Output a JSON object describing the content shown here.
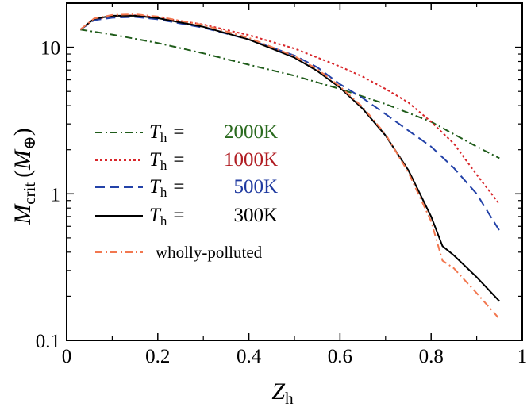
{
  "chart_data": {
    "type": "line",
    "xlabel": "Z",
    "xlabel_sub": "h",
    "ylabel": "M",
    "ylabel_sub": "crit",
    "ylabel_unit_open": "(",
    "ylabel_unit": "M",
    "ylabel_unit_sub": "⊕",
    "ylabel_unit_close": ")",
    "xlim": [
      0,
      1
    ],
    "ylim": [
      0.1,
      20
    ],
    "yscale": "log",
    "grid": false,
    "legend_placement": "center-left",
    "x_ticks": [
      {
        "value": 0,
        "label": "0"
      },
      {
        "value": 0.2,
        "label": "0.2"
      },
      {
        "value": 0.4,
        "label": "0.4"
      },
      {
        "value": 0.6,
        "label": "0.6"
      },
      {
        "value": 0.8,
        "label": "0.8"
      },
      {
        "value": 1,
        "label": "1"
      }
    ],
    "y_ticks": [
      {
        "value": 0.1,
        "label": "0.1"
      },
      {
        "value": 1,
        "label": "1"
      },
      {
        "value": 10,
        "label": "10"
      }
    ],
    "legend_symbol": "T",
    "legend_symbol_sub": "h",
    "legend_eq": "=",
    "series": [
      {
        "name": "2000K",
        "color": "#1f5c1a",
        "dash": "dashdot",
        "x": [
          0.03,
          0.1,
          0.2,
          0.3,
          0.4,
          0.5,
          0.6,
          0.7,
          0.8,
          0.9,
          0.95
        ],
        "y": [
          13.2,
          12.2,
          10.7,
          9.1,
          7.6,
          6.4,
          5.2,
          4.1,
          3.1,
          2.1,
          1.75
        ]
      },
      {
        "name": "1000K",
        "color": "#d8262a",
        "dash": "dotted",
        "x": [
          0.03,
          0.06,
          0.1,
          0.15,
          0.2,
          0.3,
          0.4,
          0.5,
          0.6,
          0.65,
          0.7,
          0.75,
          0.8,
          0.85,
          0.9,
          0.95
        ],
        "y": [
          13.2,
          15.5,
          16.3,
          16.5,
          16.0,
          14.3,
          12.1,
          9.8,
          7.4,
          6.3,
          5.2,
          4.2,
          3.1,
          2.2,
          1.35,
          0.85
        ]
      },
      {
        "name": "500K",
        "color": "#2342a8",
        "dash": "dashed",
        "x": [
          0.03,
          0.06,
          0.1,
          0.15,
          0.2,
          0.3,
          0.4,
          0.5,
          0.55,
          0.6,
          0.65,
          0.7,
          0.75,
          0.8,
          0.85,
          0.9,
          0.95
        ],
        "y": [
          13.2,
          15.3,
          15.9,
          16.1,
          15.5,
          13.6,
          11.3,
          8.8,
          7.3,
          5.6,
          4.5,
          3.5,
          2.7,
          2.1,
          1.5,
          1.0,
          0.56
        ]
      },
      {
        "name": "300K",
        "color": "#000000",
        "dash": "solid",
        "x": [
          0.03,
          0.06,
          0.1,
          0.15,
          0.2,
          0.3,
          0.4,
          0.5,
          0.55,
          0.6,
          0.65,
          0.7,
          0.75,
          0.8,
          0.825,
          0.85,
          0.9,
          0.95
        ],
        "y": [
          13.2,
          15.6,
          16.4,
          16.4,
          15.8,
          13.8,
          11.3,
          8.5,
          6.9,
          5.3,
          3.8,
          2.5,
          1.45,
          0.7,
          0.44,
          0.38,
          0.27,
          0.185
        ]
      },
      {
        "name": "wholly-polluted",
        "color": "#f2774f",
        "dash": "dashdot",
        "x": [
          0.03,
          0.06,
          0.1,
          0.15,
          0.2,
          0.3,
          0.4,
          0.5,
          0.55,
          0.6,
          0.65,
          0.7,
          0.75,
          0.8,
          0.825,
          0.85,
          0.9,
          0.95
        ],
        "y": [
          13.2,
          15.7,
          16.6,
          16.8,
          16.2,
          14.2,
          11.6,
          8.7,
          7.1,
          5.4,
          3.9,
          2.55,
          1.4,
          0.65,
          0.35,
          0.31,
          0.21,
          0.14
        ]
      }
    ],
    "legend_entries": [
      {
        "series": 0,
        "kind": "th",
        "label": "2000K",
        "label_color": "#2a6a1e"
      },
      {
        "series": 1,
        "kind": "th",
        "label": "1000K",
        "label_color": "#b01c22"
      },
      {
        "series": 2,
        "kind": "th",
        "label": "500K",
        "label_color": "#1f3aa0"
      },
      {
        "series": 3,
        "kind": "th",
        "label": "300K",
        "label_color": "#000000"
      },
      {
        "series": 4,
        "kind": "plain",
        "label": "wholly-polluted",
        "label_color": "#000000"
      }
    ]
  }
}
